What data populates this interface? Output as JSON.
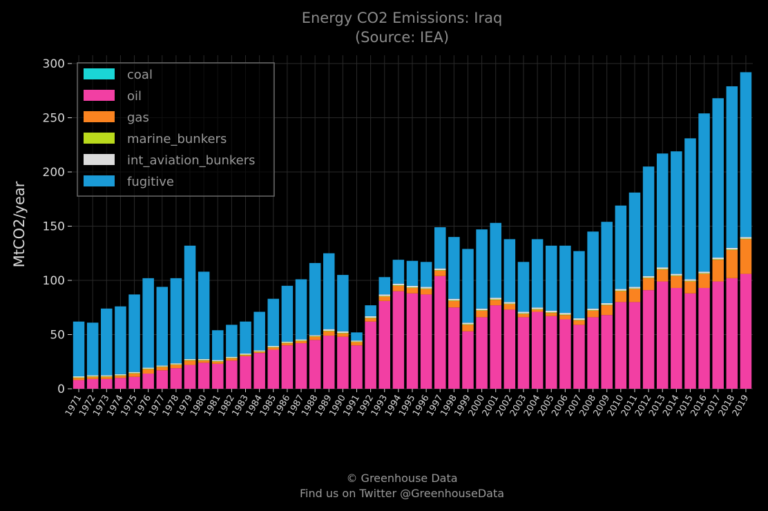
{
  "chart_data": {
    "type": "bar",
    "stacked": true,
    "title": "Energy CO2 Emissions: Iraq",
    "subtitle": "(Source: IEA)",
    "ylabel": "MtCO2/year",
    "ylim": [
      0,
      300
    ],
    "yticks": [
      0,
      50,
      100,
      150,
      200,
      250,
      300
    ],
    "grid": true,
    "legend_position": "top-left",
    "categories": [
      "1971",
      "1972",
      "1973",
      "1974",
      "1975",
      "1976",
      "1977",
      "1978",
      "1979",
      "1980",
      "1981",
      "1982",
      "1983",
      "1984",
      "1985",
      "1986",
      "1987",
      "1988",
      "1989",
      "1990",
      "1991",
      "1992",
      "1993",
      "1994",
      "1995",
      "1996",
      "1997",
      "1998",
      "1999",
      "2000",
      "2001",
      "2002",
      "2003",
      "2004",
      "2005",
      "2006",
      "2007",
      "2008",
      "2009",
      "2010",
      "2011",
      "2012",
      "2013",
      "2014",
      "2015",
      "2016",
      "2017",
      "2018",
      "2019"
    ],
    "series": [
      {
        "name": "coal",
        "color": "#1ad6d6",
        "values": [
          0,
          0,
          0,
          0,
          0,
          0,
          0,
          0,
          0,
          0,
          0,
          0,
          0,
          0,
          0,
          0,
          0,
          0,
          0,
          0,
          0,
          0,
          0,
          0,
          0,
          0,
          0,
          0,
          0,
          0,
          0,
          0,
          0,
          0,
          0,
          0,
          0,
          0,
          0,
          0,
          0,
          0,
          0,
          0,
          0,
          0,
          0,
          0,
          0
        ]
      },
      {
        "name": "oil",
        "color": "#f23fa3",
        "values": [
          8,
          9,
          9,
          10,
          11,
          14,
          17,
          19,
          22,
          24,
          23,
          26,
          30,
          33,
          36,
          40,
          42,
          45,
          49,
          48,
          40,
          62,
          81,
          90,
          88,
          87,
          104,
          75,
          53,
          66,
          77,
          73,
          66,
          71,
          67,
          64,
          59,
          66,
          68,
          80,
          80,
          91,
          99,
          93,
          88,
          93,
          99,
          102,
          106
        ]
      },
      {
        "name": "gas",
        "color": "#fa8320",
        "values": [
          2,
          2,
          2,
          2,
          3,
          4,
          3,
          3,
          4,
          2,
          2,
          2,
          1,
          1,
          2,
          2,
          2,
          3,
          4,
          3,
          3,
          3,
          4,
          5,
          5,
          5,
          5,
          6,
          6,
          6,
          5,
          5,
          3,
          2,
          3,
          4,
          4,
          6,
          9,
          10,
          12,
          11,
          11,
          11,
          11,
          13,
          20,
          26,
          32
        ]
      },
      {
        "name": "marine_bunkers",
        "color": "#bada1c",
        "values": [
          0.5,
          0.5,
          0.5,
          0.5,
          0.5,
          0.5,
          0.5,
          0.5,
          0.5,
          0.5,
          0.5,
          0.5,
          0.5,
          0.5,
          0.5,
          0.5,
          0.5,
          0.5,
          0.5,
          0.5,
          0.5,
          0.5,
          0.5,
          0.5,
          0.5,
          0.5,
          0.5,
          0.5,
          0.5,
          0.5,
          0.5,
          0.5,
          0.5,
          0.5,
          0.5,
          0.5,
          0.5,
          0.5,
          0.5,
          0.5,
          0.5,
          0.5,
          0.5,
          0.5,
          0.5,
          0.5,
          0.5,
          0.5,
          0.5
        ]
      },
      {
        "name": "int_aviation_bunkers",
        "color": "#dcdcdc",
        "values": [
          1,
          1,
          1,
          1,
          1,
          1,
          1,
          1,
          1,
          1,
          1,
          1,
          1,
          1,
          1,
          1,
          1,
          1,
          1.5,
          1.5,
          1,
          1.5,
          1.5,
          1.5,
          1.5,
          1.5,
          1.5,
          1.5,
          1.5,
          1.5,
          1.5,
          1.5,
          1.5,
          1.5,
          1.5,
          1.5,
          1.5,
          1.5,
          1.5,
          1.5,
          1.5,
          1.5,
          1.5,
          1.5,
          1.5,
          1.5,
          1.5,
          1.5,
          1.5
        ]
      },
      {
        "name": "fugitive",
        "color": "#1a9ad6",
        "values": [
          50.5,
          48.5,
          61.5,
          62.5,
          71.5,
          82.5,
          72.5,
          78.5,
          104.5,
          80.5,
          27.5,
          29.5,
          29.5,
          35.5,
          43.5,
          51.5,
          55.5,
          66.5,
          70,
          52,
          7.5,
          10,
          16,
          22,
          23,
          23,
          38,
          57,
          68,
          73,
          69,
          58,
          46,
          63,
          60,
          62,
          62,
          71,
          75,
          77,
          87,
          101,
          105,
          113,
          130,
          146,
          147,
          149,
          152
        ]
      }
    ]
  },
  "footer": {
    "line1": "© Greenhouse Data",
    "line2": "Find us on Twitter @GreenhouseData"
  }
}
